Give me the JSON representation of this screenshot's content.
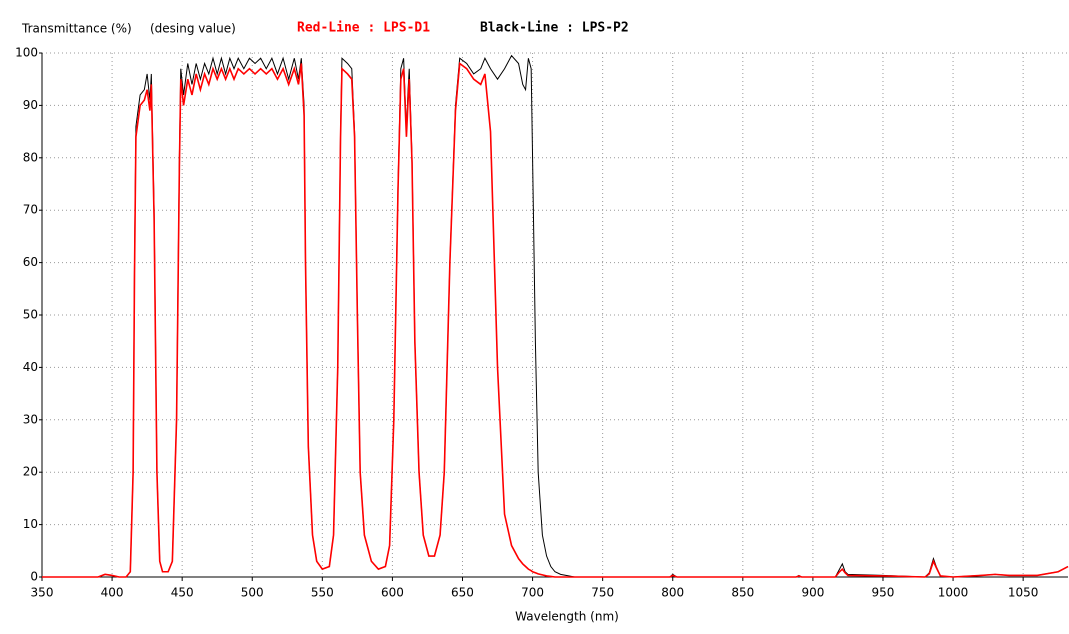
{
  "chart_data": {
    "type": "line",
    "ylabel": "Transmittance (%)",
    "subtitle": "(desing value)",
    "xlabel": "Wavelength (nm)",
    "xlim": [
      350,
      1082
    ],
    "ylim": [
      0,
      100
    ],
    "xticks": [
      350,
      400,
      450,
      500,
      550,
      600,
      650,
      700,
      750,
      800,
      850,
      900,
      950,
      1000,
      1050
    ],
    "yticks": [
      0,
      10,
      20,
      30,
      40,
      50,
      60,
      70,
      80,
      90,
      100
    ],
    "grid": true,
    "x": [
      350,
      390,
      395,
      400,
      405,
      410,
      413,
      415,
      416,
      417,
      420,
      423,
      425,
      427,
      428,
      430,
      432,
      434,
      436,
      440,
      443,
      446,
      448,
      449,
      451,
      454,
      457,
      460,
      463,
      466,
      469,
      472,
      475,
      478,
      481,
      484,
      487,
      490,
      494,
      498,
      502,
      506,
      510,
      514,
      518,
      522,
      526,
      530,
      533,
      535,
      537,
      538,
      540,
      543,
      546,
      550,
      555,
      558,
      561,
      563,
      564,
      568,
      571,
      573,
      575,
      577,
      580,
      585,
      590,
      595,
      598,
      601,
      604,
      606,
      608,
      610,
      611,
      612,
      614,
      616,
      619,
      622,
      626,
      630,
      634,
      637,
      641,
      645,
      648,
      653,
      658,
      663,
      666,
      670,
      675,
      680,
      685,
      690,
      693,
      695,
      697,
      699,
      700,
      702,
      704,
      707,
      710,
      713,
      716,
      720,
      730,
      798,
      800,
      803,
      888,
      890,
      892,
      916,
      919,
      921,
      923,
      925,
      950,
      980,
      983,
      986,
      988,
      991,
      1000,
      1020,
      1030,
      1040,
      1060,
      1075,
      1082
    ],
    "series": [
      {
        "name": "Black-Line : LPS-P2",
        "color": "#000000",
        "values": [
          0,
          0,
          0.5,
          0.3,
          0,
          0,
          1,
          20,
          60,
          86,
          92,
          93,
          96,
          91,
          96,
          70,
          20,
          3,
          1,
          1,
          3,
          30,
          80,
          97,
          92,
          98,
          94,
          98,
          95,
          98,
          96,
          99,
          96,
          99,
          96,
          99,
          97,
          99,
          97,
          99,
          98,
          99,
          97,
          99,
          96,
          99,
          95,
          99,
          95,
          99,
          90,
          60,
          25,
          8,
          3,
          1.5,
          2,
          8,
          40,
          85,
          99,
          98,
          97,
          85,
          50,
          20,
          8,
          3,
          1.5,
          2,
          6,
          30,
          75,
          97,
          99,
          85,
          92,
          97,
          80,
          45,
          20,
          8,
          4,
          4,
          8,
          20,
          60,
          90,
          99,
          98,
          96,
          97,
          99,
          97,
          95,
          97,
          99.5,
          98,
          94,
          93,
          99,
          97,
          80,
          45,
          20,
          8,
          4,
          2,
          1,
          0.5,
          0,
          0,
          0.5,
          0,
          0,
          0.3,
          0,
          0,
          1.5,
          2.5,
          1,
          0.5,
          0.3,
          0,
          0.8,
          3.5,
          2,
          0.2,
          0,
          0.3,
          0.5,
          0.3,
          0.3,
          1,
          2
        ]
      },
      {
        "name": "Red-Line : LPS-D1",
        "color": "#ff0000",
        "values": [
          0,
          0,
          0.5,
          0.3,
          0,
          0,
          1,
          20,
          58,
          84,
          90,
          91,
          93,
          89,
          94,
          68,
          20,
          3,
          1,
          1,
          3,
          30,
          78,
          95,
          90,
          95,
          92,
          96,
          93,
          96,
          94,
          97,
          95,
          97,
          95,
          97,
          95,
          97,
          96,
          97,
          96,
          97,
          96,
          97,
          95,
          97,
          94,
          97,
          94,
          98,
          88,
          60,
          25,
          8,
          3,
          1.5,
          2,
          8,
          40,
          84,
          97,
          96,
          95,
          84,
          50,
          20,
          8,
          3,
          1.5,
          2,
          6,
          30,
          74,
          95,
          97,
          84,
          90,
          95,
          79,
          45,
          20,
          8,
          4,
          4,
          8,
          20,
          60,
          89,
          98,
          97,
          95,
          94,
          96,
          85,
          40,
          12,
          6,
          3.5,
          2.5,
          2,
          1.5,
          1.2,
          1,
          0.8,
          0.6,
          0.4,
          0.2,
          0.1,
          0,
          0,
          0,
          0,
          0.3,
          0,
          0,
          0.2,
          0,
          0,
          1,
          1.5,
          0.8,
          0.3,
          0.2,
          0,
          0.6,
          3,
          1.8,
          0.2,
          0,
          0.3,
          0.5,
          0.3,
          0.3,
          1,
          2
        ]
      }
    ]
  }
}
